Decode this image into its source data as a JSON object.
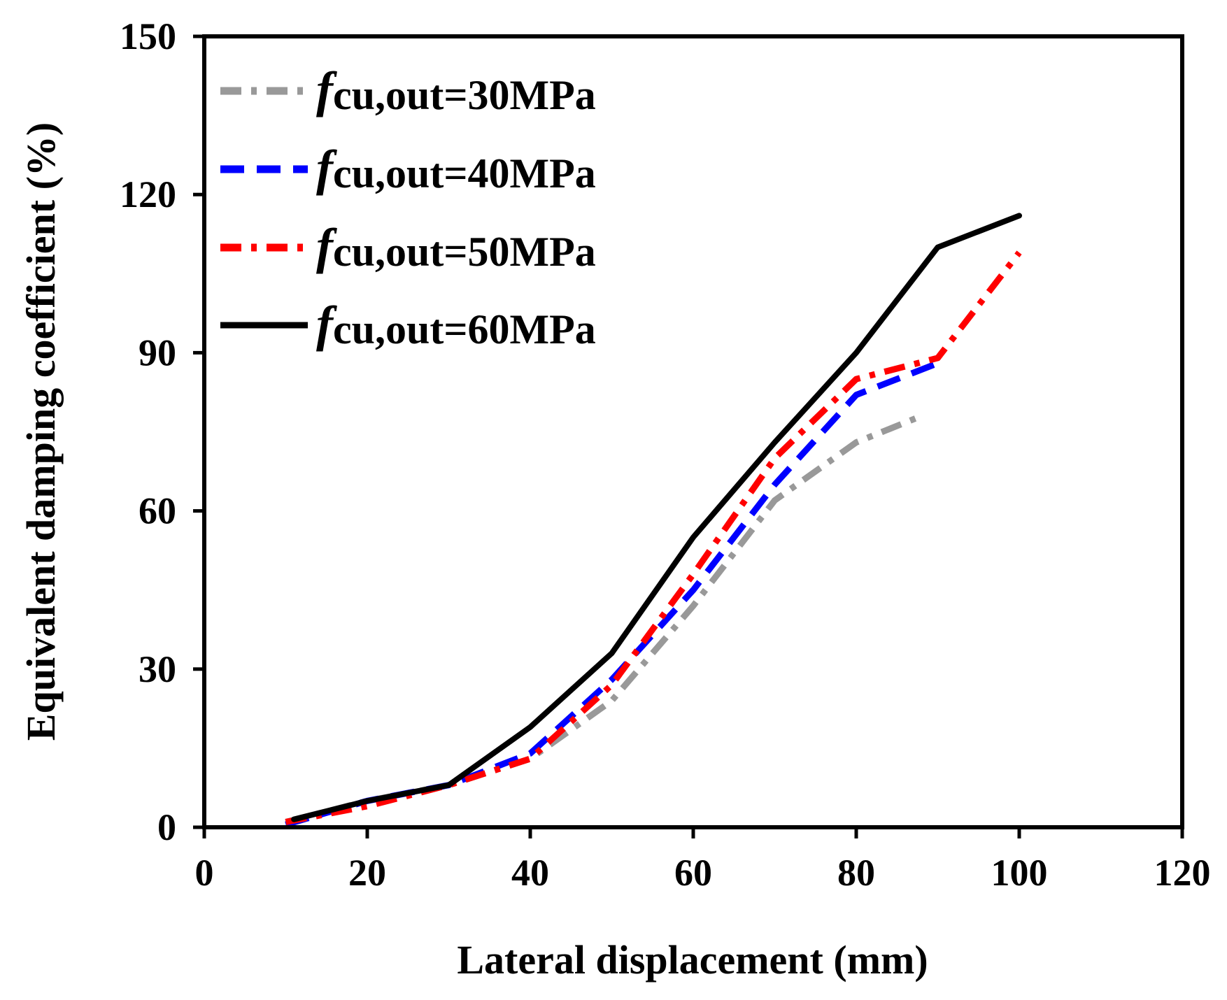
{
  "chart_data": {
    "type": "line",
    "title": "",
    "xlabel": "Lateral displacement (mm)",
    "ylabel": "Equivalent damping coefficient (%)",
    "xlim": [
      0,
      120
    ],
    "ylim": [
      0,
      150
    ],
    "xticks": [
      0,
      20,
      40,
      60,
      80,
      100,
      120
    ],
    "yticks": [
      0,
      30,
      60,
      90,
      120,
      150
    ],
    "grid": false,
    "legend_position": "top-left",
    "series": [
      {
        "name": "fcu,out=30MPa",
        "legend_symbol": "f",
        "legend_rest": "cu,out=30MPa",
        "color": "#999999",
        "dash": "dash-dot",
        "x": [
          10,
          20,
          30,
          40,
          50,
          60,
          70,
          80,
          88
        ],
        "y": [
          1,
          5,
          8,
          13,
          24,
          42,
          62,
          73,
          78
        ]
      },
      {
        "name": "fcu,out=40MPa",
        "legend_symbol": "f",
        "legend_rest": "cu,out=40MPa",
        "color": "#0000ff",
        "dash": "dash",
        "x": [
          10,
          20,
          30,
          40,
          50,
          60,
          70,
          80,
          90
        ],
        "y": [
          0.5,
          5,
          8,
          14,
          28,
          45,
          65,
          82,
          88
        ]
      },
      {
        "name": "fcu,out=50MPa",
        "legend_symbol": "f",
        "legend_rest": "cu,out=50MPa",
        "color": "#ff0000",
        "dash": "dash-dot",
        "x": [
          10,
          20,
          30,
          40,
          50,
          60,
          70,
          80,
          90,
          100
        ],
        "y": [
          1,
          4,
          8,
          13,
          27,
          48,
          70,
          85,
          89,
          109
        ]
      },
      {
        "name": "fcu,out=60MPa",
        "legend_symbol": "f",
        "legend_rest": "cu,out=60MPa",
        "color": "#000000",
        "dash": "solid",
        "x": [
          11,
          20,
          30,
          40,
          50,
          60,
          70,
          80,
          90,
          100
        ],
        "y": [
          1.5,
          5,
          8,
          19,
          33,
          55,
          73,
          90,
          110,
          116
        ]
      }
    ]
  }
}
